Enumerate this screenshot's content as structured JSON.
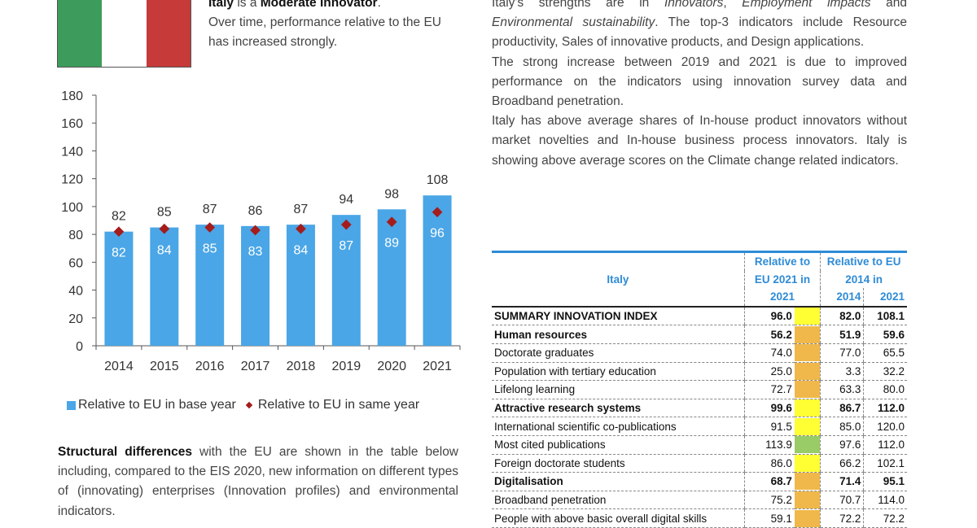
{
  "colors": {
    "bar": "#4aa6e6",
    "diamond": "#a51c1c",
    "yellow": "#ffff33",
    "orange": "#f0b84a",
    "green": "#99cc66",
    "header_blue": "#2e8bd6"
  },
  "intro": {
    "country_bold": "Italy",
    "is_a": " is a ",
    "category_bold": "Moderate Innovator",
    "period": ".",
    "body": "Over time, performance relative to the EU has increased strongly."
  },
  "right_text": {
    "p1_start": "Italy's strengths are in ",
    "p1_italic1": "Innovators",
    "p1_mid1": ", ",
    "p1_italic2": "Employment impacts",
    "p1_mid2": " and ",
    "p1_italic3": "Environmental sustainability",
    "p1_end": ". The top-3 indicators include Resource productivity, Sales of innovative products, and Design applications.",
    "p2": "The strong increase between 2019 and 2021 is due to improved performance on the indicators using innovation survey data and Broadband penetration.",
    "p3": "Italy has above average shares of In-house product innovators without market novelties and In-house business process innovators. Italy is showing above average scores on the Climate change related indicators."
  },
  "chart_data": {
    "type": "bar",
    "categories": [
      "2014",
      "2015",
      "2016",
      "2017",
      "2018",
      "2019",
      "2020",
      "2021"
    ],
    "series": [
      {
        "name": "Relative to EU in base year",
        "values": [
          82,
          85,
          87,
          86,
          87,
          94,
          98,
          108
        ]
      },
      {
        "name": "Relative to EU in same year",
        "values": [
          82,
          84,
          85,
          83,
          84,
          87,
          89,
          96
        ]
      }
    ],
    "ylim": [
      0,
      180
    ],
    "yticks": [
      0,
      20,
      40,
      60,
      80,
      100,
      120,
      140,
      160,
      180
    ],
    "legend": "bottom"
  },
  "structural": {
    "bold": "Structural differences",
    "text": " with the EU are shown in the table below including, compared to the EIS 2020, new information on different types of (innovating) enterprises (Innovation profiles) and environmental indicators."
  },
  "table": {
    "header": {
      "country": "Italy",
      "rel2021_l1": "Relative to",
      "rel2021_l2": "EU 2021 in",
      "rel2021_l3": "2021",
      "relbase_l1": "Relative to EU",
      "relbase_l2": "2014 in",
      "y2014": "2014",
      "y2021": "2021"
    },
    "rows": [
      {
        "label": "SUMMARY INNOVATION INDEX",
        "bold": true,
        "rel": "96.0",
        "color": "yellow",
        "v2014": "82.0",
        "v2021": "108.1"
      },
      {
        "label": "Human resources",
        "bold": true,
        "rel": "56.2",
        "color": "orange",
        "v2014": "51.9",
        "v2021": "59.6"
      },
      {
        "label": "Doctorate graduates",
        "bold": false,
        "rel": "74.0",
        "color": "orange",
        "v2014": "77.0",
        "v2021": "65.5"
      },
      {
        "label": "Population with tertiary education",
        "bold": false,
        "rel": "25.0",
        "color": "orange",
        "v2014": "3.3",
        "v2021": "32.2"
      },
      {
        "label": "Lifelong learning",
        "bold": false,
        "rel": "72.7",
        "color": "orange",
        "v2014": "63.3",
        "v2021": "80.0"
      },
      {
        "label": "Attractive research systems",
        "bold": true,
        "rel": "99.6",
        "color": "yellow",
        "v2014": "86.7",
        "v2021": "112.0"
      },
      {
        "label": "International scientific co-publications",
        "bold": false,
        "rel": "91.5",
        "color": "yellow",
        "v2014": "85.0",
        "v2021": "120.0"
      },
      {
        "label": "Most cited publications",
        "bold": false,
        "rel": "113.9",
        "color": "green",
        "v2014": "97.6",
        "v2021": "112.0"
      },
      {
        "label": "Foreign doctorate students",
        "bold": false,
        "rel": "86.0",
        "color": "yellow",
        "v2014": "66.2",
        "v2021": "102.1"
      },
      {
        "label": "Digitalisation",
        "bold": true,
        "rel": "68.7",
        "color": "orange",
        "v2014": "71.4",
        "v2021": "95.1"
      },
      {
        "label": "Broadband penetration",
        "bold": false,
        "rel": "75.2",
        "color": "orange",
        "v2014": "70.7",
        "v2021": "114.0"
      },
      {
        "label": "People with above basic overall digital skills",
        "bold": false,
        "rel": "59.1",
        "color": "orange",
        "v2014": "72.2",
        "v2021": "72.2"
      }
    ]
  }
}
